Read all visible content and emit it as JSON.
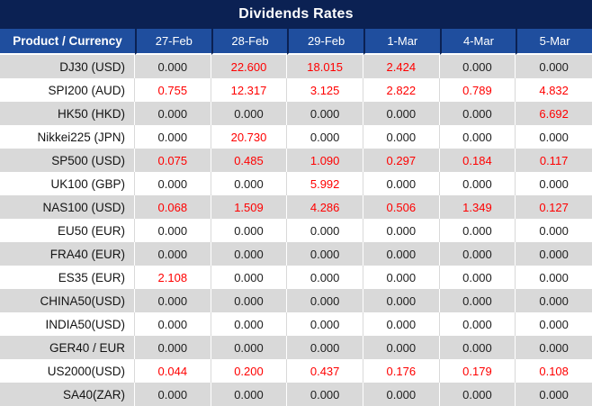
{
  "title": "Dividends Rates",
  "colors": {
    "title_bar_bg": "#0b2153",
    "header_bg": "#1f4e9e",
    "header_text": "#ffffff",
    "stripe_row_bg": "#d9d9d9",
    "plain_row_bg": "#ffffff",
    "zero_value_text": "#202020",
    "nonzero_value_text": "#ff0000"
  },
  "chart_data": {
    "type": "table",
    "title": "Dividends Rates",
    "row_header_label": "Product / Currency",
    "columns": [
      "27-Feb",
      "28-Feb",
      "29-Feb",
      "1-Mar",
      "4-Mar",
      "5-Mar"
    ],
    "rows": [
      {
        "product": "DJ30 (USD)",
        "values": [
          "0.000",
          "22.600",
          "18.015",
          "2.424",
          "0.000",
          "0.000"
        ]
      },
      {
        "product": "SPI200 (AUD)",
        "values": [
          "0.755",
          "12.317",
          "3.125",
          "2.822",
          "0.789",
          "4.832"
        ]
      },
      {
        "product": "HK50 (HKD)",
        "values": [
          "0.000",
          "0.000",
          "0.000",
          "0.000",
          "0.000",
          "6.692"
        ]
      },
      {
        "product": "Nikkei225 (JPN)",
        "values": [
          "0.000",
          "20.730",
          "0.000",
          "0.000",
          "0.000",
          "0.000"
        ]
      },
      {
        "product": "SP500 (USD)",
        "values": [
          "0.075",
          "0.485",
          "1.090",
          "0.297",
          "0.184",
          "0.117"
        ]
      },
      {
        "product": "UK100 (GBP)",
        "values": [
          "0.000",
          "0.000",
          "5.992",
          "0.000",
          "0.000",
          "0.000"
        ]
      },
      {
        "product": "NAS100 (USD)",
        "values": [
          "0.068",
          "1.509",
          "4.286",
          "0.506",
          "1.349",
          "0.127"
        ]
      },
      {
        "product": "EU50 (EUR)",
        "values": [
          "0.000",
          "0.000",
          "0.000",
          "0.000",
          "0.000",
          "0.000"
        ]
      },
      {
        "product": "FRA40 (EUR)",
        "values": [
          "0.000",
          "0.000",
          "0.000",
          "0.000",
          "0.000",
          "0.000"
        ]
      },
      {
        "product": "ES35 (EUR)",
        "values": [
          "2.108",
          "0.000",
          "0.000",
          "0.000",
          "0.000",
          "0.000"
        ]
      },
      {
        "product": "CHINA50(USD)",
        "values": [
          "0.000",
          "0.000",
          "0.000",
          "0.000",
          "0.000",
          "0.000"
        ]
      },
      {
        "product": "INDIA50(USD)",
        "values": [
          "0.000",
          "0.000",
          "0.000",
          "0.000",
          "0.000",
          "0.000"
        ]
      },
      {
        "product": "GER40 / EUR",
        "values": [
          "0.000",
          "0.000",
          "0.000",
          "0.000",
          "0.000",
          "0.000"
        ]
      },
      {
        "product": "US2000(USD)",
        "values": [
          "0.044",
          "0.200",
          "0.437",
          "0.176",
          "0.179",
          "0.108"
        ]
      },
      {
        "product": "SA40(ZAR)",
        "values": [
          "0.000",
          "0.000",
          "0.000",
          "0.000",
          "0.000",
          "0.000"
        ]
      }
    ]
  }
}
